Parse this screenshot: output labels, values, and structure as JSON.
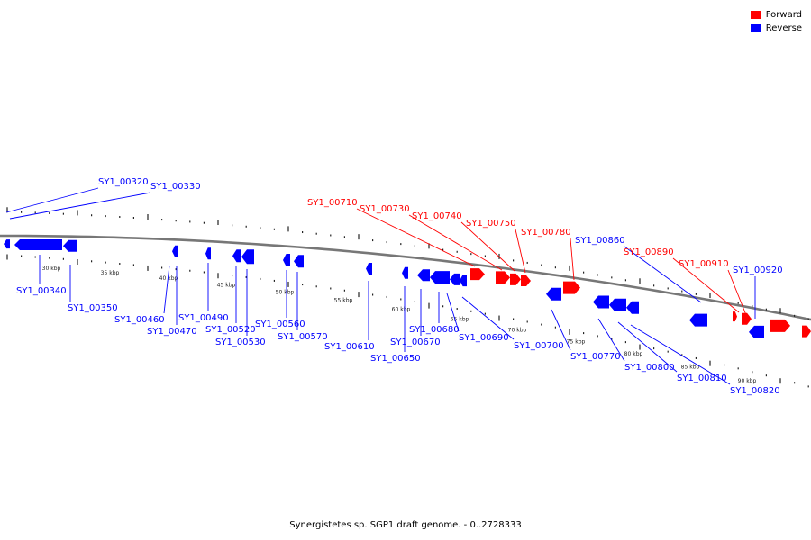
{
  "legend": {
    "forward_label": "Forward",
    "reverse_label": "Reverse",
    "forward_color": "#ff0000",
    "reverse_color": "#0000ff"
  },
  "caption": "Synergistetes sp. SGP1 draft genome. - 0..2728333",
  "kbp_ticks": [
    "30 kbp",
    "35 kbp",
    "40 kbp",
    "45 kbp",
    "50 kbp",
    "55 kbp",
    "60 kbp",
    "65 kbp",
    "70 kbp",
    "75 kbp",
    "80 kbp",
    "85 kbp",
    "90 kbp"
  ],
  "gene_labels": [
    {
      "name": "SY1_00320",
      "strand": "reverse"
    },
    {
      "name": "SY1_00330",
      "strand": "reverse"
    },
    {
      "name": "SY1_00340",
      "strand": "reverse"
    },
    {
      "name": "SY1_00350",
      "strand": "reverse"
    },
    {
      "name": "SY1_00460",
      "strand": "reverse"
    },
    {
      "name": "SY1_00470",
      "strand": "reverse"
    },
    {
      "name": "SY1_00490",
      "strand": "reverse"
    },
    {
      "name": "SY1_00520",
      "strand": "reverse"
    },
    {
      "name": "SY1_00530",
      "strand": "reverse"
    },
    {
      "name": "SY1_00560",
      "strand": "reverse"
    },
    {
      "name": "SY1_00570",
      "strand": "reverse"
    },
    {
      "name": "SY1_00610",
      "strand": "reverse"
    },
    {
      "name": "SY1_00650",
      "strand": "reverse"
    },
    {
      "name": "SY1_00670",
      "strand": "reverse"
    },
    {
      "name": "SY1_00680",
      "strand": "reverse"
    },
    {
      "name": "SY1_00690",
      "strand": "reverse"
    },
    {
      "name": "SY1_00700",
      "strand": "reverse"
    },
    {
      "name": "SY1_00710",
      "strand": "forward"
    },
    {
      "name": "SY1_00730",
      "strand": "forward"
    },
    {
      "name": "SY1_00740",
      "strand": "forward"
    },
    {
      "name": "SY1_00750",
      "strand": "forward"
    },
    {
      "name": "SY1_00770",
      "strand": "reverse"
    },
    {
      "name": "SY1_00780",
      "strand": "forward"
    },
    {
      "name": "SY1_00800",
      "strand": "reverse"
    },
    {
      "name": "SY1_00810",
      "strand": "reverse"
    },
    {
      "name": "SY1_00820",
      "strand": "reverse"
    },
    {
      "name": "SY1_00860",
      "strand": "reverse"
    },
    {
      "name": "SY1_00890",
      "strand": "forward"
    },
    {
      "name": "SY1_00910",
      "strand": "forward"
    },
    {
      "name": "SY1_00920",
      "strand": "reverse"
    }
  ]
}
